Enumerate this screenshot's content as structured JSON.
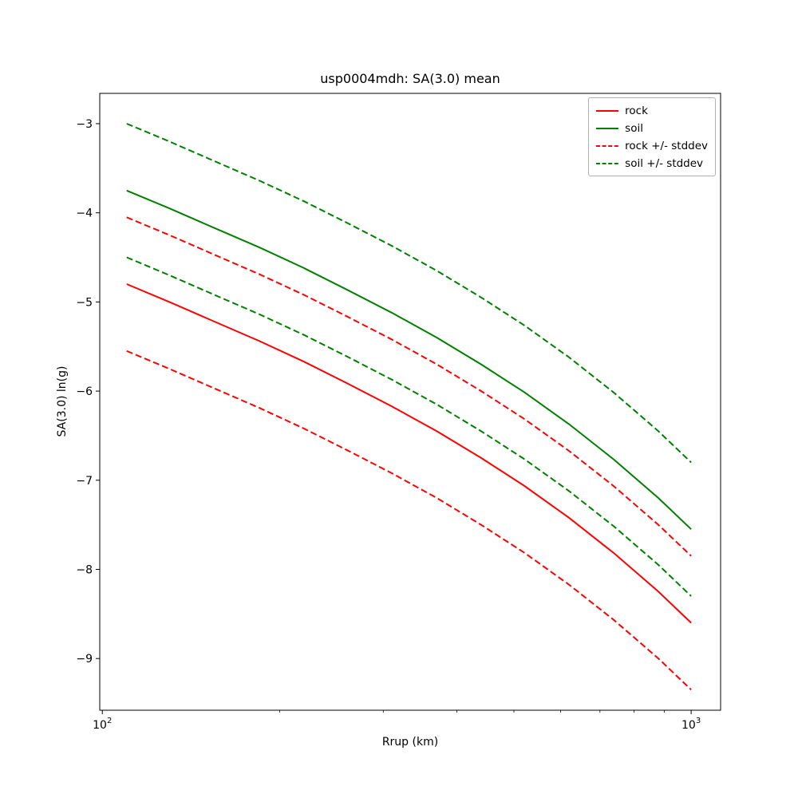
{
  "chart_data": {
    "type": "line",
    "title": "usp0004mdh: SA(3.0) mean",
    "xlabel": "Rrup (km)",
    "ylabel": "SA(3.0) ln(g)",
    "xscale": "log",
    "grid": false,
    "legend_position": "upper right",
    "xlim": [
      99,
      1122
    ],
    "ylim": [
      -9.58,
      -2.66
    ],
    "x": [
      110,
      130,
      155,
      185,
      220,
      260,
      310,
      370,
      440,
      520,
      620,
      740,
      880,
      1000
    ],
    "series": [
      {
        "name": "rock",
        "color": "#ff0000",
        "style": "solid",
        "values": [
          -4.8,
          -5.0,
          -5.22,
          -5.44,
          -5.67,
          -5.91,
          -6.17,
          -6.45,
          -6.75,
          -7.06,
          -7.42,
          -7.82,
          -8.25,
          -8.6
        ]
      },
      {
        "name": "soil",
        "color": "#008000",
        "style": "solid",
        "values": [
          -3.75,
          -3.95,
          -4.17,
          -4.39,
          -4.62,
          -4.86,
          -5.12,
          -5.4,
          -5.7,
          -6.01,
          -6.37,
          -6.77,
          -7.2,
          -7.55
        ]
      },
      {
        "name": "rock +/- stddev",
        "color": "#ff0000",
        "style": "dashed",
        "values_upper": [
          -4.05,
          -4.25,
          -4.47,
          -4.69,
          -4.92,
          -5.16,
          -5.42,
          -5.7,
          -6.0,
          -6.31,
          -6.67,
          -7.07,
          -7.5,
          -7.85
        ],
        "values_lower": [
          -5.55,
          -5.75,
          -5.97,
          -6.19,
          -6.42,
          -6.66,
          -6.92,
          -7.2,
          -7.5,
          -7.81,
          -8.17,
          -8.57,
          -9.0,
          -9.35
        ]
      },
      {
        "name": "soil +/- stddev",
        "color": "#008000",
        "style": "dashed",
        "values_upper": [
          -3.0,
          -3.2,
          -3.42,
          -3.64,
          -3.87,
          -4.11,
          -4.37,
          -4.65,
          -4.95,
          -5.26,
          -5.62,
          -6.02,
          -6.45,
          -6.8
        ],
        "values_lower": [
          -4.5,
          -4.7,
          -4.92,
          -5.14,
          -5.37,
          -5.61,
          -5.87,
          -6.15,
          -6.45,
          -6.76,
          -7.12,
          -7.52,
          -7.95,
          -8.3
        ]
      }
    ],
    "xticks": {
      "major": [
        {
          "value": 100,
          "base": "10",
          "exp": "2"
        },
        {
          "value": 1000,
          "base": "10",
          "exp": "3"
        }
      ],
      "minor": [
        200,
        300,
        400,
        500,
        600,
        700,
        800,
        900
      ]
    },
    "yticks": [
      {
        "value": -3,
        "label": "−3"
      },
      {
        "value": -4,
        "label": "−4"
      },
      {
        "value": -5,
        "label": "−5"
      },
      {
        "value": -6,
        "label": "−6"
      },
      {
        "value": -7,
        "label": "−7"
      },
      {
        "value": -8,
        "label": "−8"
      },
      {
        "value": -9,
        "label": "−9"
      }
    ],
    "legend": [
      "rock",
      "soil",
      "rock +/- stddev",
      "soil +/- stddev"
    ]
  }
}
